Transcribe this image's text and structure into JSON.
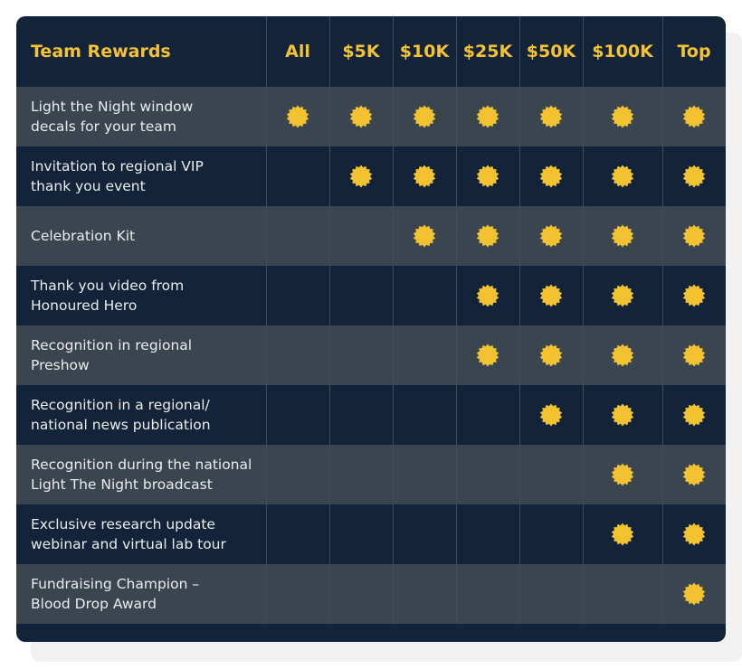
{
  "table": {
    "title": "Team Rewards",
    "columns": [
      "All",
      "$5K",
      "$10K",
      "$25K",
      "$50K",
      "$100K",
      "Top"
    ],
    "rows": [
      {
        "label": [
          "Light the Night window",
          "decals for your team"
        ],
        "cells": [
          true,
          true,
          true,
          true,
          true,
          true,
          true
        ]
      },
      {
        "label": [
          "Invitation to regional VIP",
          "thank you event"
        ],
        "cells": [
          false,
          true,
          true,
          true,
          true,
          true,
          true
        ]
      },
      {
        "label": [
          "Celebration Kit"
        ],
        "cells": [
          false,
          false,
          true,
          true,
          true,
          true,
          true
        ]
      },
      {
        "label": [
          "Thank you video from",
          "Honoured Hero"
        ],
        "cells": [
          false,
          false,
          false,
          true,
          true,
          true,
          true
        ]
      },
      {
        "label": [
          "Recognition in regional",
          "Preshow"
        ],
        "cells": [
          false,
          false,
          false,
          true,
          true,
          true,
          true
        ]
      },
      {
        "label": [
          "Recognition in a regional/",
          "national news publication"
        ],
        "cells": [
          false,
          false,
          false,
          false,
          true,
          true,
          true
        ]
      },
      {
        "label": [
          "Recognition during the national",
          "Light The Night broadcast"
        ],
        "cells": [
          false,
          false,
          false,
          false,
          false,
          true,
          true
        ]
      },
      {
        "label": [
          "Exclusive research update",
          "webinar and virtual lab tour"
        ],
        "cells": [
          false,
          false,
          false,
          false,
          false,
          true,
          true
        ]
      },
      {
        "label": [
          "Fundraising Champion –",
          "Blood Drop Award"
        ],
        "cells": [
          false,
          false,
          false,
          false,
          false,
          false,
          true
        ]
      }
    ]
  }
}
